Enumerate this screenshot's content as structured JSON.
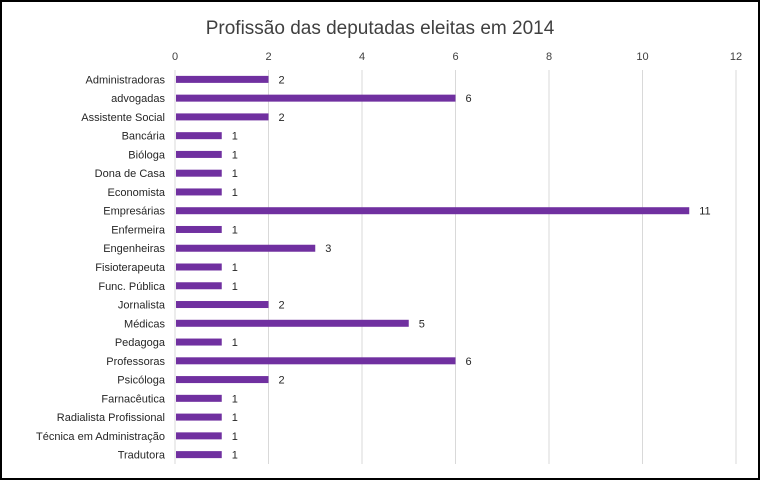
{
  "chart_data": {
    "type": "bar",
    "orientation": "horizontal",
    "title": "Profissão das deputadas eleitas em 2014",
    "xlabel": "",
    "ylabel": "",
    "xlim": [
      0,
      12
    ],
    "xticks": [
      0,
      2,
      4,
      6,
      8,
      10,
      12
    ],
    "grid": true,
    "bar_color": "#7030A0",
    "categories": [
      "Administradoras",
      "advogadas",
      "Assistente Social",
      "Bancária",
      "Bióloga",
      "Dona de Casa",
      "Economista",
      "Empresárias",
      "Enfermeira",
      "Engenheiras",
      "Fisioterapeuta",
      "Func. Pública",
      "Jornalista",
      "Médicas",
      "Pedagoga",
      "Professoras",
      "Psicóloga",
      "Farnacêutica",
      "Radialista Profissional",
      "Técnica em Administração",
      "Tradutora"
    ],
    "values": [
      2,
      6,
      2,
      1,
      1,
      1,
      1,
      11,
      1,
      3,
      1,
      1,
      2,
      5,
      1,
      6,
      2,
      1,
      1,
      1,
      1
    ]
  }
}
